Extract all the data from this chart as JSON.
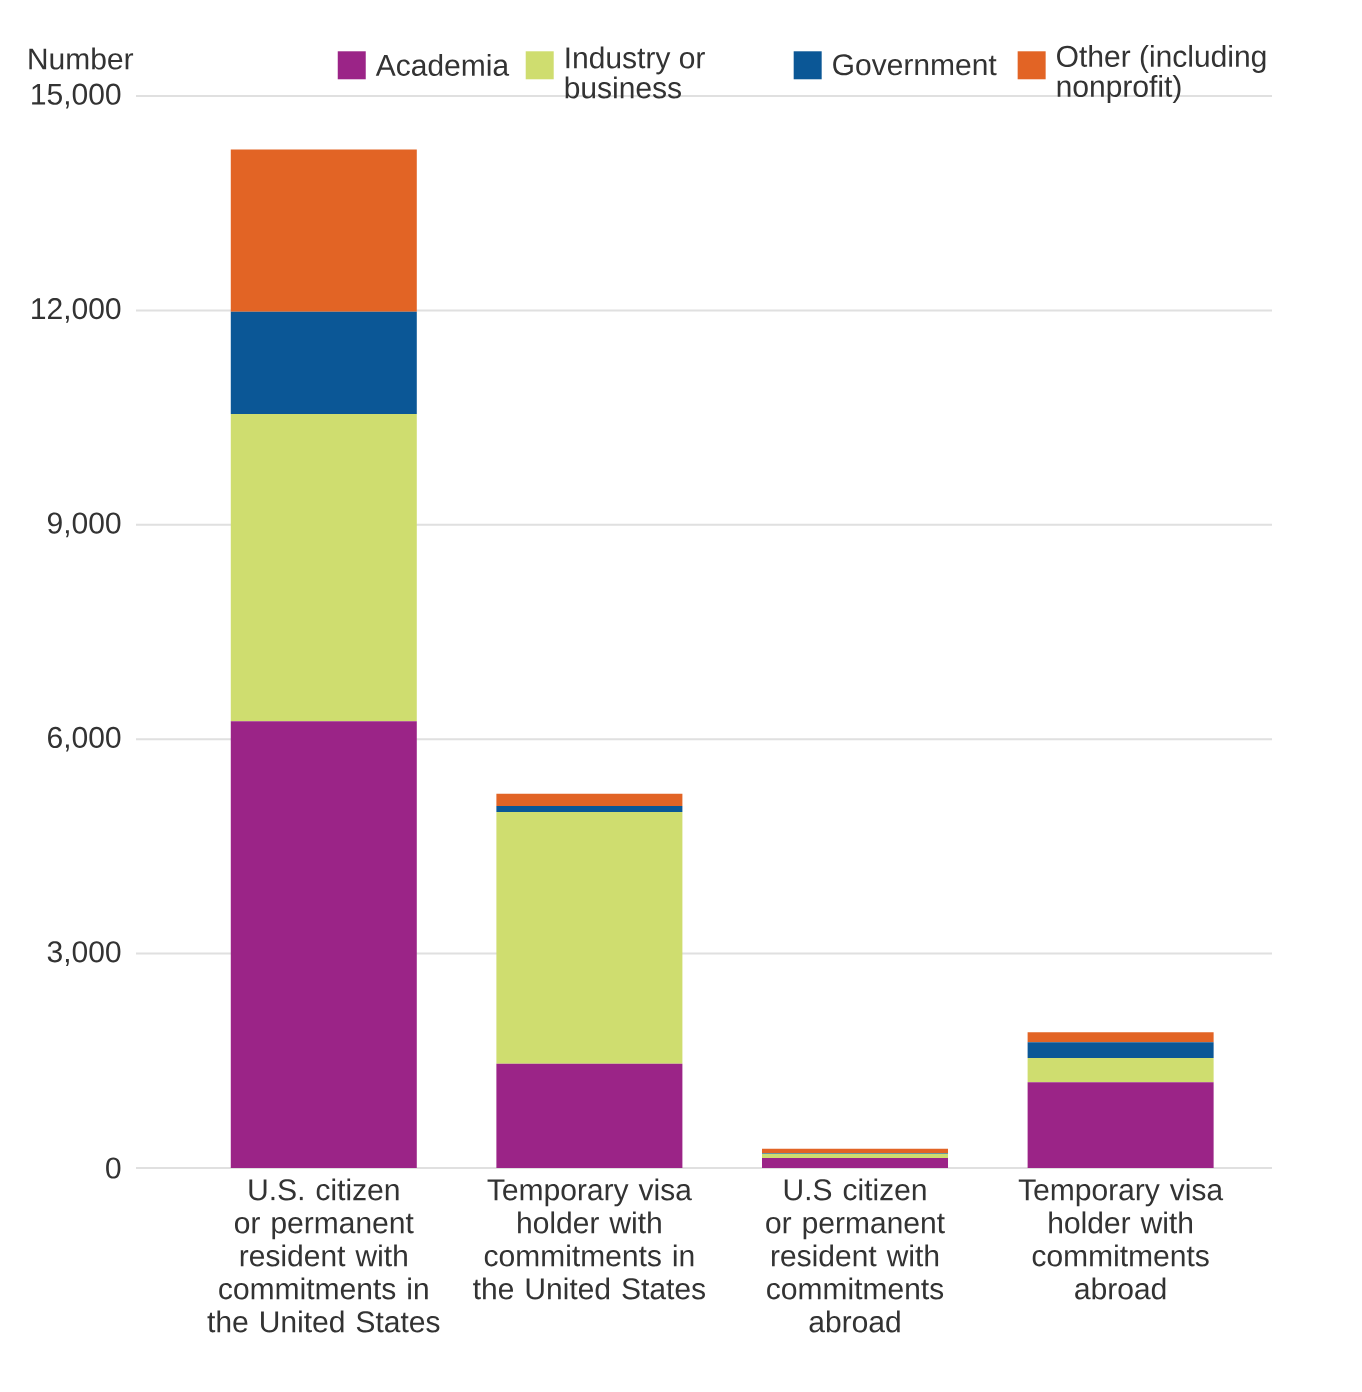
{
  "chart_data": {
    "type": "bar",
    "stacked": true,
    "ylabel": "Number",
    "categories": [
      "U.S. citizen or permanent resident with commitments in the United States",
      "Temporary visa holder with commitments in the United States",
      "U.S citizen or permanent resident with commitments abroad",
      "Temporary visa holder with commitments abroad"
    ],
    "series": [
      {
        "name": "Academia",
        "color": "#9b2487",
        "values": [
          6250,
          1460,
          140,
          1200
        ]
      },
      {
        "name": "Industry or business",
        "color": "#cfdd6f",
        "values": [
          4300,
          3520,
          60,
          340
        ]
      },
      {
        "name": "Government",
        "color": "#0b5796",
        "values": [
          1430,
          85,
          10,
          220
        ]
      },
      {
        "name": "Other (including nonprofit)",
        "color": "#e26425",
        "values": [
          2270,
          170,
          60,
          140
        ]
      }
    ],
    "ylim": [
      0,
      15000
    ],
    "yticks": [
      0,
      {
        "value": 3000,
        "label": "3,000"
      },
      {
        "value": 6000,
        "label": "6,000"
      },
      {
        "value": 9000,
        "label": "9,000"
      },
      {
        "value": 12000,
        "label": "12,000"
      },
      {
        "value": 15000,
        "label": "15,000"
      }
    ],
    "grid": "y",
    "legend": "top right"
  }
}
